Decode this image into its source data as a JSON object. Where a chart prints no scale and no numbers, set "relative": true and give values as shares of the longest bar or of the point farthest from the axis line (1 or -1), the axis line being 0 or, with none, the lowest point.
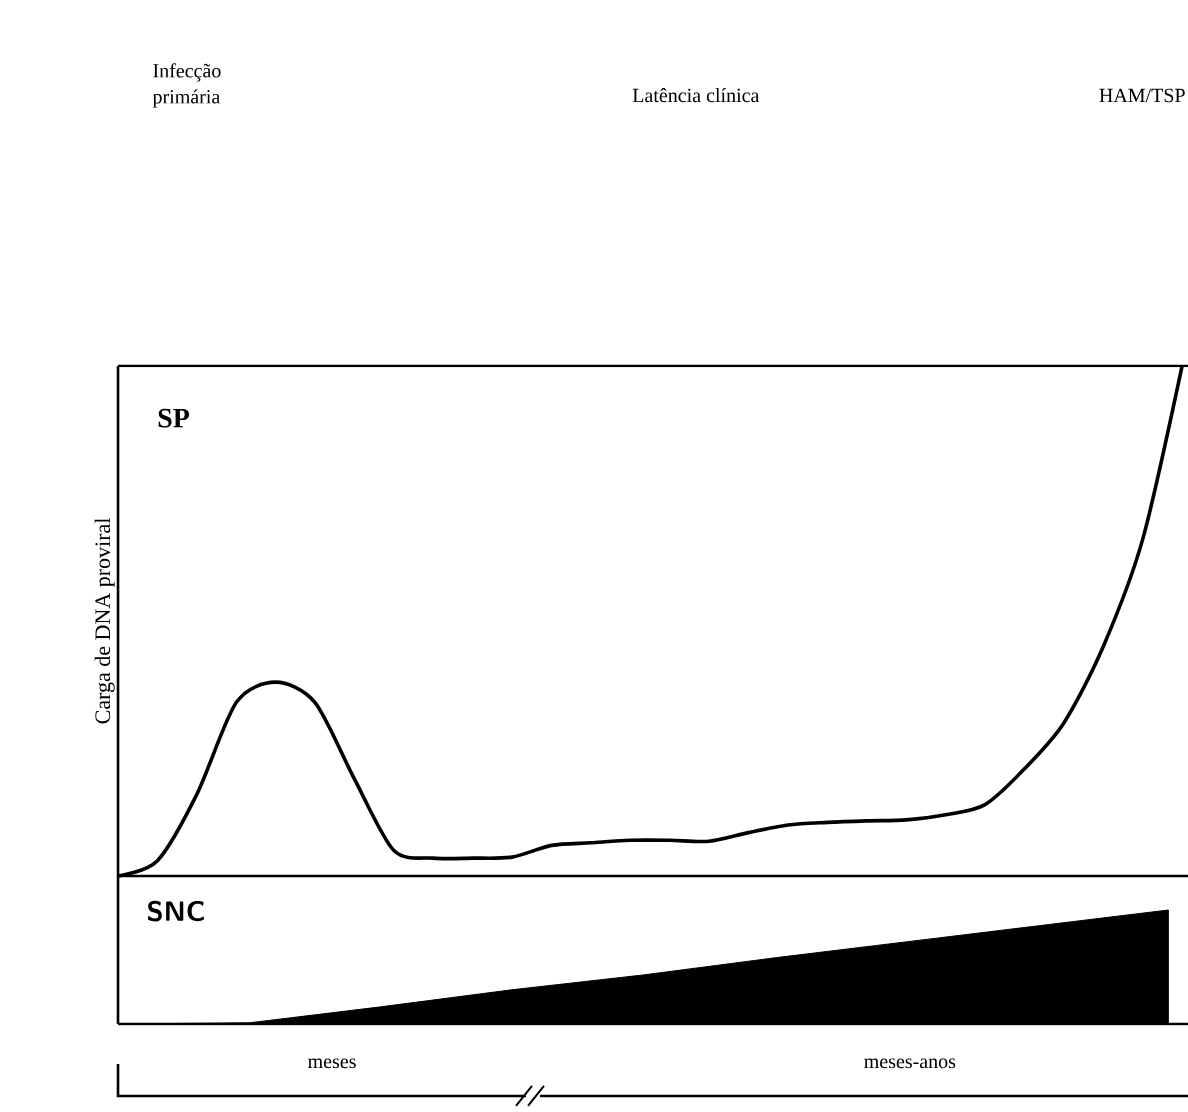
{
  "chart_data": [
    {
      "type": "line",
      "title": "SP",
      "ylabel": "Carga de DNA proviral",
      "relative": true,
      "color": "#000000",
      "categories": [
        null,
        null,
        null,
        null,
        null,
        null,
        null,
        null,
        null,
        null,
        null,
        null,
        null,
        null,
        null,
        null,
        null,
        null,
        null,
        null,
        null,
        null,
        null,
        null,
        null,
        null,
        null,
        null
      ],
      "values": [
        0,
        0.03,
        0.16,
        0.34,
        0.38,
        0.34,
        0.19,
        0.05,
        0.035,
        0.035,
        0.037,
        0.06,
        0.065,
        0.07,
        0.07,
        0.068,
        0.085,
        0.1,
        0.105,
        0.108,
        0.11,
        0.12,
        0.14,
        0.21,
        0.3,
        0.45,
        0.66,
        1.0
      ],
      "annotations": [
        "Infecção primária",
        "Latência clínica",
        "HAM/TSP"
      ]
    },
    {
      "type": "area",
      "title": "SNC",
      "relative": true,
      "color": "#000000",
      "categories": [
        null,
        null,
        null,
        null,
        null,
        null,
        null,
        null,
        null
      ],
      "values": [
        0,
        0.01,
        0.15,
        0.3,
        0.43,
        0.58,
        0.72,
        0.86,
        1.0
      ],
      "annotations": [
        "meses",
        "meses-anos"
      ]
    }
  ]
}
